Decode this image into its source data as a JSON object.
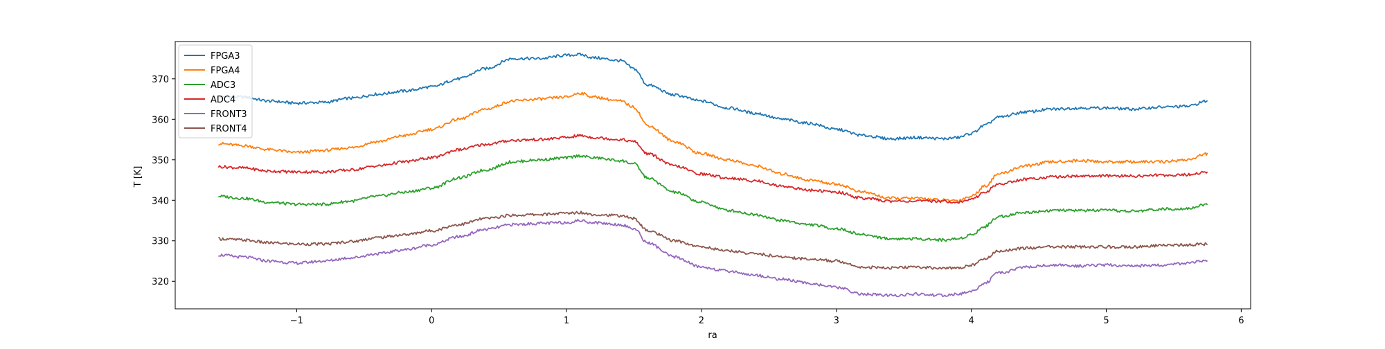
{
  "chart_data": {
    "type": "line",
    "title": "",
    "xlabel": "ra",
    "ylabel": "T [K]",
    "xlim": [
      -1.9,
      6.07
    ],
    "ylim": [
      313.2,
      379.2
    ],
    "xticks": [
      -1,
      0,
      1,
      2,
      3,
      4,
      5,
      6
    ],
    "xtick_labels": [
      "−1",
      "0",
      "1",
      "2",
      "3",
      "4",
      "5",
      "6"
    ],
    "yticks": [
      320,
      330,
      340,
      350,
      360,
      370
    ],
    "ytick_labels": [
      "320",
      "330",
      "340",
      "350",
      "360",
      "370"
    ],
    "grid": false,
    "legend": "top-left",
    "x": [
      -1.58,
      -1.4,
      -1.2,
      -1.0,
      -0.8,
      -0.6,
      -0.4,
      -0.2,
      0.0,
      0.2,
      0.4,
      0.6,
      0.8,
      1.0,
      1.1,
      1.2,
      1.4,
      1.5,
      1.6,
      1.8,
      2.0,
      2.2,
      2.4,
      2.6,
      2.8,
      3.0,
      3.2,
      3.4,
      3.6,
      3.8,
      3.9,
      4.0,
      4.1,
      4.2,
      4.4,
      4.6,
      4.8,
      5.0,
      5.2,
      5.4,
      5.6,
      5.75
    ],
    "series": [
      {
        "name": "FPGA3",
        "color": "#1f77b4",
        "values": [
          365.5,
          365.5,
          364.5,
          364.0,
          364.2,
          365.2,
          366.2,
          367.0,
          368.0,
          370.0,
          372.5,
          375.0,
          375.0,
          375.8,
          376.0,
          375.2,
          374.5,
          372.5,
          368.5,
          366.0,
          364.5,
          362.8,
          361.5,
          360.0,
          359.0,
          357.5,
          356.0,
          355.2,
          355.5,
          355.2,
          355.5,
          356.5,
          358.5,
          360.5,
          361.8,
          362.5,
          362.8,
          362.8,
          362.5,
          363.0,
          363.2,
          364.5
        ]
      },
      {
        "name": "FPGA4",
        "color": "#ff7f0e",
        "values": [
          354.0,
          353.5,
          352.5,
          351.8,
          352.3,
          353.0,
          354.5,
          356.0,
          357.5,
          360.0,
          362.5,
          364.5,
          365.0,
          365.5,
          366.5,
          365.5,
          364.5,
          363.0,
          358.5,
          354.5,
          351.5,
          350.0,
          348.5,
          346.5,
          345.0,
          344.0,
          342.0,
          340.5,
          340.5,
          340.0,
          340.0,
          341.0,
          343.5,
          346.5,
          348.5,
          349.5,
          349.8,
          349.5,
          349.5,
          349.5,
          350.0,
          351.5
        ]
      },
      {
        "name": "ADC3",
        "color": "#2ca02c",
        "values": [
          341.0,
          340.5,
          339.5,
          339.0,
          339.0,
          339.8,
          341.0,
          342.0,
          343.0,
          345.5,
          347.5,
          349.5,
          350.0,
          350.5,
          351.0,
          350.5,
          349.8,
          349.0,
          345.5,
          342.0,
          339.5,
          337.5,
          336.5,
          335.0,
          334.0,
          333.0,
          331.5,
          330.5,
          330.5,
          330.2,
          330.5,
          331.5,
          333.5,
          336.0,
          337.0,
          337.5,
          337.5,
          337.5,
          337.3,
          337.8,
          338.0,
          339.0
        ]
      },
      {
        "name": "ADC4",
        "color": "#d62728",
        "values": [
          348.3,
          348.0,
          347.2,
          347.0,
          347.0,
          347.5,
          348.5,
          349.5,
          350.5,
          352.5,
          353.8,
          354.8,
          355.0,
          355.5,
          356.0,
          355.5,
          355.0,
          354.5,
          351.5,
          348.5,
          346.5,
          345.5,
          344.8,
          343.5,
          342.5,
          342.0,
          340.5,
          339.8,
          339.8,
          339.8,
          339.5,
          340.2,
          342.0,
          344.0,
          345.2,
          345.8,
          346.0,
          346.0,
          346.0,
          346.2,
          346.3,
          347.0
        ]
      },
      {
        "name": "FRONT3",
        "color": "#9467bd",
        "values": [
          326.5,
          326.0,
          325.0,
          324.5,
          325.0,
          325.8,
          326.8,
          327.8,
          329.0,
          331.0,
          332.8,
          334.0,
          334.3,
          334.5,
          335.0,
          334.5,
          334.0,
          333.0,
          329.5,
          326.0,
          323.5,
          322.5,
          321.5,
          320.5,
          319.5,
          318.5,
          316.8,
          316.5,
          316.8,
          316.5,
          316.8,
          317.5,
          319.5,
          322.0,
          323.5,
          324.0,
          323.8,
          324.0,
          323.8,
          324.0,
          324.5,
          325.0
        ]
      },
      {
        "name": "FRONT4",
        "color": "#8c564b",
        "values": [
          330.5,
          330.2,
          329.5,
          329.2,
          329.2,
          329.8,
          330.8,
          331.5,
          332.5,
          334.0,
          335.5,
          336.3,
          336.5,
          336.8,
          337.0,
          336.5,
          336.2,
          335.5,
          332.5,
          330.0,
          328.5,
          327.5,
          326.8,
          326.0,
          325.5,
          325.0,
          323.5,
          323.3,
          323.5,
          323.2,
          323.3,
          324.0,
          325.5,
          327.5,
          328.2,
          328.5,
          328.5,
          328.5,
          328.5,
          328.8,
          329.0,
          329.2
        ]
      }
    ]
  }
}
